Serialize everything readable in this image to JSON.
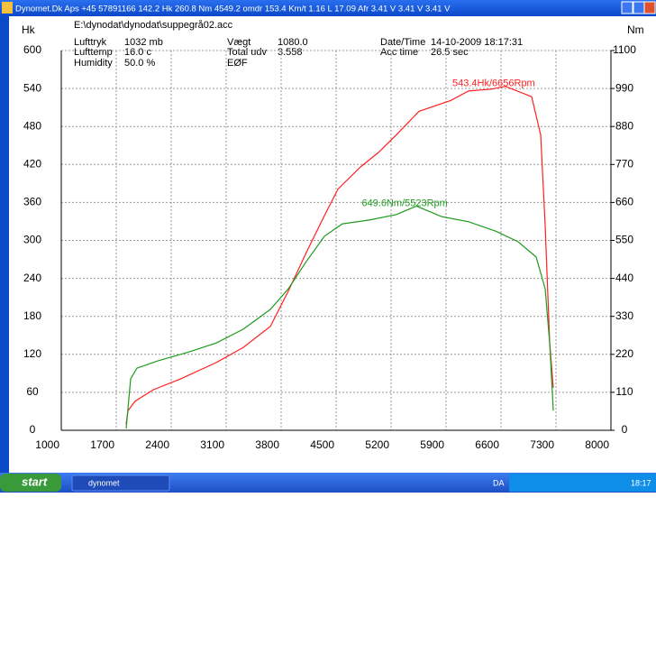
{
  "window_title": "Dynomet.Dk Aps +45 57891166  142.2 Hk 260.8 Nm 4549.2 omdr 153.4 Km/t   1.16 L 17.09 Afr 3.41 V 3.41 V 3.41 V",
  "taskbar": {
    "start": "start",
    "task": "dynomet",
    "language": "DA",
    "clock": "18:17"
  },
  "chart_data": {
    "type": "line",
    "file": "E:\\dynodat\\dynodat\\suppegrå02.acc",
    "info": [
      {
        "label": "Lufttryk",
        "value": "1032 mb"
      },
      {
        "label": "Lufttemp",
        "value": "16.0 c"
      },
      {
        "label": "Humidity",
        "value": "50.0 %"
      },
      {
        "label": "Vægt",
        "value": "1080.0"
      },
      {
        "label": "Total udv",
        "value": "3.558"
      },
      {
        "label": "EØF",
        "value": ""
      },
      {
        "label": "Date/Time",
        "value": "14-10-2009 18:17:31"
      },
      {
        "label": "Acc time",
        "value": "26.5 sec"
      }
    ],
    "ylabel": "Hk",
    "y2label": "Nm",
    "xlim": [
      1000,
      8000
    ],
    "xticks": [
      1000,
      1700,
      2400,
      3100,
      3800,
      4500,
      5200,
      5900,
      6600,
      7300,
      8000
    ],
    "ylim": [
      0,
      600
    ],
    "yticks": [
      0,
      60,
      120,
      180,
      240,
      300,
      360,
      420,
      480,
      540,
      600
    ],
    "y2lim": [
      0,
      1100
    ],
    "y2ticks": [
      0,
      110,
      220,
      330,
      440,
      550,
      660,
      770,
      880,
      990,
      1100
    ],
    "grid": true,
    "series": [
      {
        "name": "Hk",
        "color": "#ff2020",
        "x": [
          1826,
          1849,
          1941,
          2170,
          2515,
          2974,
          3318,
          3662,
          3892,
          4121,
          4351,
          4523,
          4810,
          5039,
          5269,
          5556,
          5958,
          6187,
          6474,
          6656,
          6990,
          7105,
          7162,
          7220,
          7265
        ],
        "values": [
          10,
          31,
          46,
          64,
          81,
          107,
          131,
          164,
          220,
          281,
          339,
          381,
          416,
          439,
          467,
          504,
          521,
          536,
          539,
          543.4,
          527,
          467,
          324,
          139,
          67
        ]
      },
      {
        "name": "Nm",
        "color": "#1f9a1f",
        "axis": "y2",
        "x": [
          1826,
          1884,
          1964,
          2228,
          2630,
          2974,
          3318,
          3662,
          3892,
          4121,
          4351,
          4580,
          4925,
          5269,
          5523,
          5843,
          6187,
          6531,
          6818,
          7048,
          7162,
          7220,
          7265
        ],
        "values": [
          5,
          149,
          180,
          201,
          227,
          253,
          293,
          350,
          410,
          489,
          562,
          598,
          609,
          625,
          649.6,
          619,
          604,
          577,
          546,
          502,
          410,
          253,
          57
        ]
      }
    ],
    "annotations": [
      {
        "text": "543.4Hk/6656Rpm",
        "color": "#ff2020"
      },
      {
        "text": "649.6Nm/5523Rpm",
        "color": "#1f9a1f"
      }
    ]
  }
}
